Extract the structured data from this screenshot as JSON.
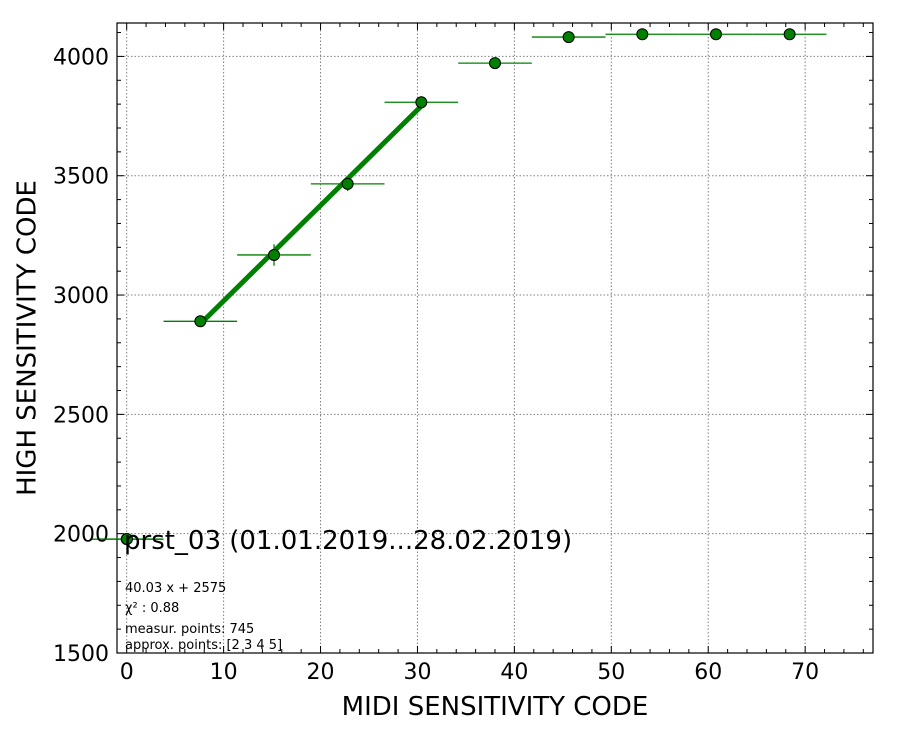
{
  "chart_data": {
    "type": "scatter",
    "xlabel": "MIDI SENSITIVITY CODE",
    "ylabel": "HIGH SENSITIVITY CODE",
    "xlim": [
      -1,
      77
    ],
    "ylim": [
      1500,
      4140
    ],
    "x_ticks": [
      0,
      10,
      20,
      30,
      40,
      50,
      60,
      70
    ],
    "y_ticks": [
      1500,
      2000,
      2500,
      3000,
      3500,
      4000
    ],
    "x_tick_labels": [
      "0",
      "10",
      "20",
      "30",
      "40",
      "50",
      "60",
      "70"
    ],
    "y_tick_labels": [
      "1500",
      "2000",
      "2500",
      "3000",
      "3500",
      "4000"
    ],
    "grid": true,
    "legend_position": "lower-left",
    "series": [
      {
        "name": "prst_03 (01.01.2019...28.02.2019)",
        "color": "#008000",
        "points": [
          {
            "x": 0,
            "y": 1977,
            "xerr": 3.8,
            "yerr": 10
          },
          {
            "x": 7.6,
            "y": 2890,
            "xerr": 3.8,
            "yerr": 15
          },
          {
            "x": 15.2,
            "y": 3168,
            "xerr": 3.8,
            "yerr": 45
          },
          {
            "x": 22.8,
            "y": 3466,
            "xerr": 3.8,
            "yerr": 30
          },
          {
            "x": 30.4,
            "y": 3808,
            "xerr": 3.8,
            "yerr": 25
          },
          {
            "x": 38.0,
            "y": 3972,
            "xerr": 3.8,
            "yerr": 15
          },
          {
            "x": 45.6,
            "y": 4081,
            "xerr": 3.8,
            "yerr": 10
          },
          {
            "x": 53.2,
            "y": 4093,
            "xerr": 3.8,
            "yerr": 8
          },
          {
            "x": 60.8,
            "y": 4093,
            "xerr": 3.8,
            "yerr": 8
          },
          {
            "x": 68.4,
            "y": 4093,
            "xerr": 3.8,
            "yerr": 8
          }
        ]
      }
    ],
    "fit": {
      "slope": 40.03,
      "intercept": 2575,
      "x_range": [
        7.6,
        30.4
      ],
      "color": "#008000"
    },
    "annotations": {
      "fit_label": "40.03 x + 2575",
      "chi2_label": "χ² : 0.88",
      "measured_label": "measur. points: 745",
      "approx_label": "approx. points: [2 3 4 5]"
    }
  }
}
